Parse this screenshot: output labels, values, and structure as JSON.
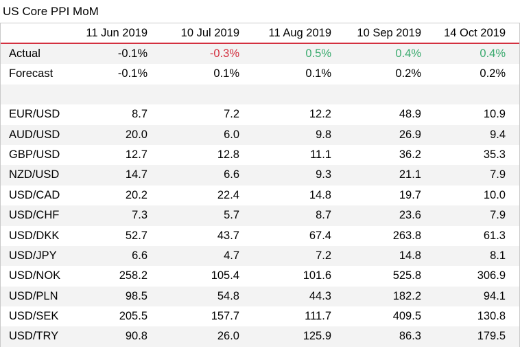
{
  "title": "US Core PPI MoM",
  "columns": [
    "",
    "11 Jun 2019",
    "10 Jul 2019",
    "11 Aug 2019",
    "10 Sep 2019",
    "14 Oct 2019"
  ],
  "actual": {
    "label": "Actual",
    "values": [
      "-0.1%",
      "-0.3%",
      "0.5%",
      "0.4%",
      "0.4%"
    ],
    "tone": [
      "plain",
      "neg",
      "pos",
      "pos",
      "pos"
    ]
  },
  "forecast": {
    "label": "Forecast",
    "values": [
      "-0.1%",
      "0.1%",
      "0.1%",
      "0.2%",
      "0.2%"
    ]
  },
  "pairs": [
    {
      "label": "EUR/USD",
      "values": [
        "8.7",
        "7.2",
        "12.2",
        "48.9",
        "10.9"
      ]
    },
    {
      "label": "AUD/USD",
      "values": [
        "20.0",
        "6.0",
        "9.8",
        "26.9",
        "9.4"
      ]
    },
    {
      "label": "GBP/USD",
      "values": [
        "12.7",
        "12.8",
        "11.1",
        "36.2",
        "35.3"
      ]
    },
    {
      "label": "NZD/USD",
      "values": [
        "14.7",
        "6.6",
        "9.3",
        "21.1",
        "7.9"
      ]
    },
    {
      "label": "USD/CAD",
      "values": [
        "20.2",
        "22.4",
        "14.8",
        "19.7",
        "10.0"
      ]
    },
    {
      "label": "USD/CHF",
      "values": [
        "7.3",
        "5.7",
        "8.7",
        "23.6",
        "7.9"
      ]
    },
    {
      "label": "USD/DKK",
      "values": [
        "52.7",
        "43.7",
        "67.4",
        "263.8",
        "61.3"
      ]
    },
    {
      "label": "USD/JPY",
      "values": [
        "6.6",
        "4.7",
        "7.2",
        "14.8",
        "8.1"
      ]
    },
    {
      "label": "USD/NOK",
      "values": [
        "258.2",
        "105.4",
        "101.6",
        "525.8",
        "306.9"
      ]
    },
    {
      "label": "USD/PLN",
      "values": [
        "98.5",
        "54.8",
        "44.3",
        "182.2",
        "94.1"
      ]
    },
    {
      "label": "USD/SEK",
      "values": [
        "205.5",
        "157.7",
        "111.7",
        "409.5",
        "130.8"
      ]
    },
    {
      "label": "USD/TRY",
      "values": [
        "90.8",
        "26.0",
        "125.9",
        "86.3",
        "179.5"
      ]
    }
  ],
  "colors": {
    "negative": "#d3303f",
    "positive": "#3aaa6e",
    "header_rule": "#d3303f",
    "band": "#f3f3f3"
  }
}
